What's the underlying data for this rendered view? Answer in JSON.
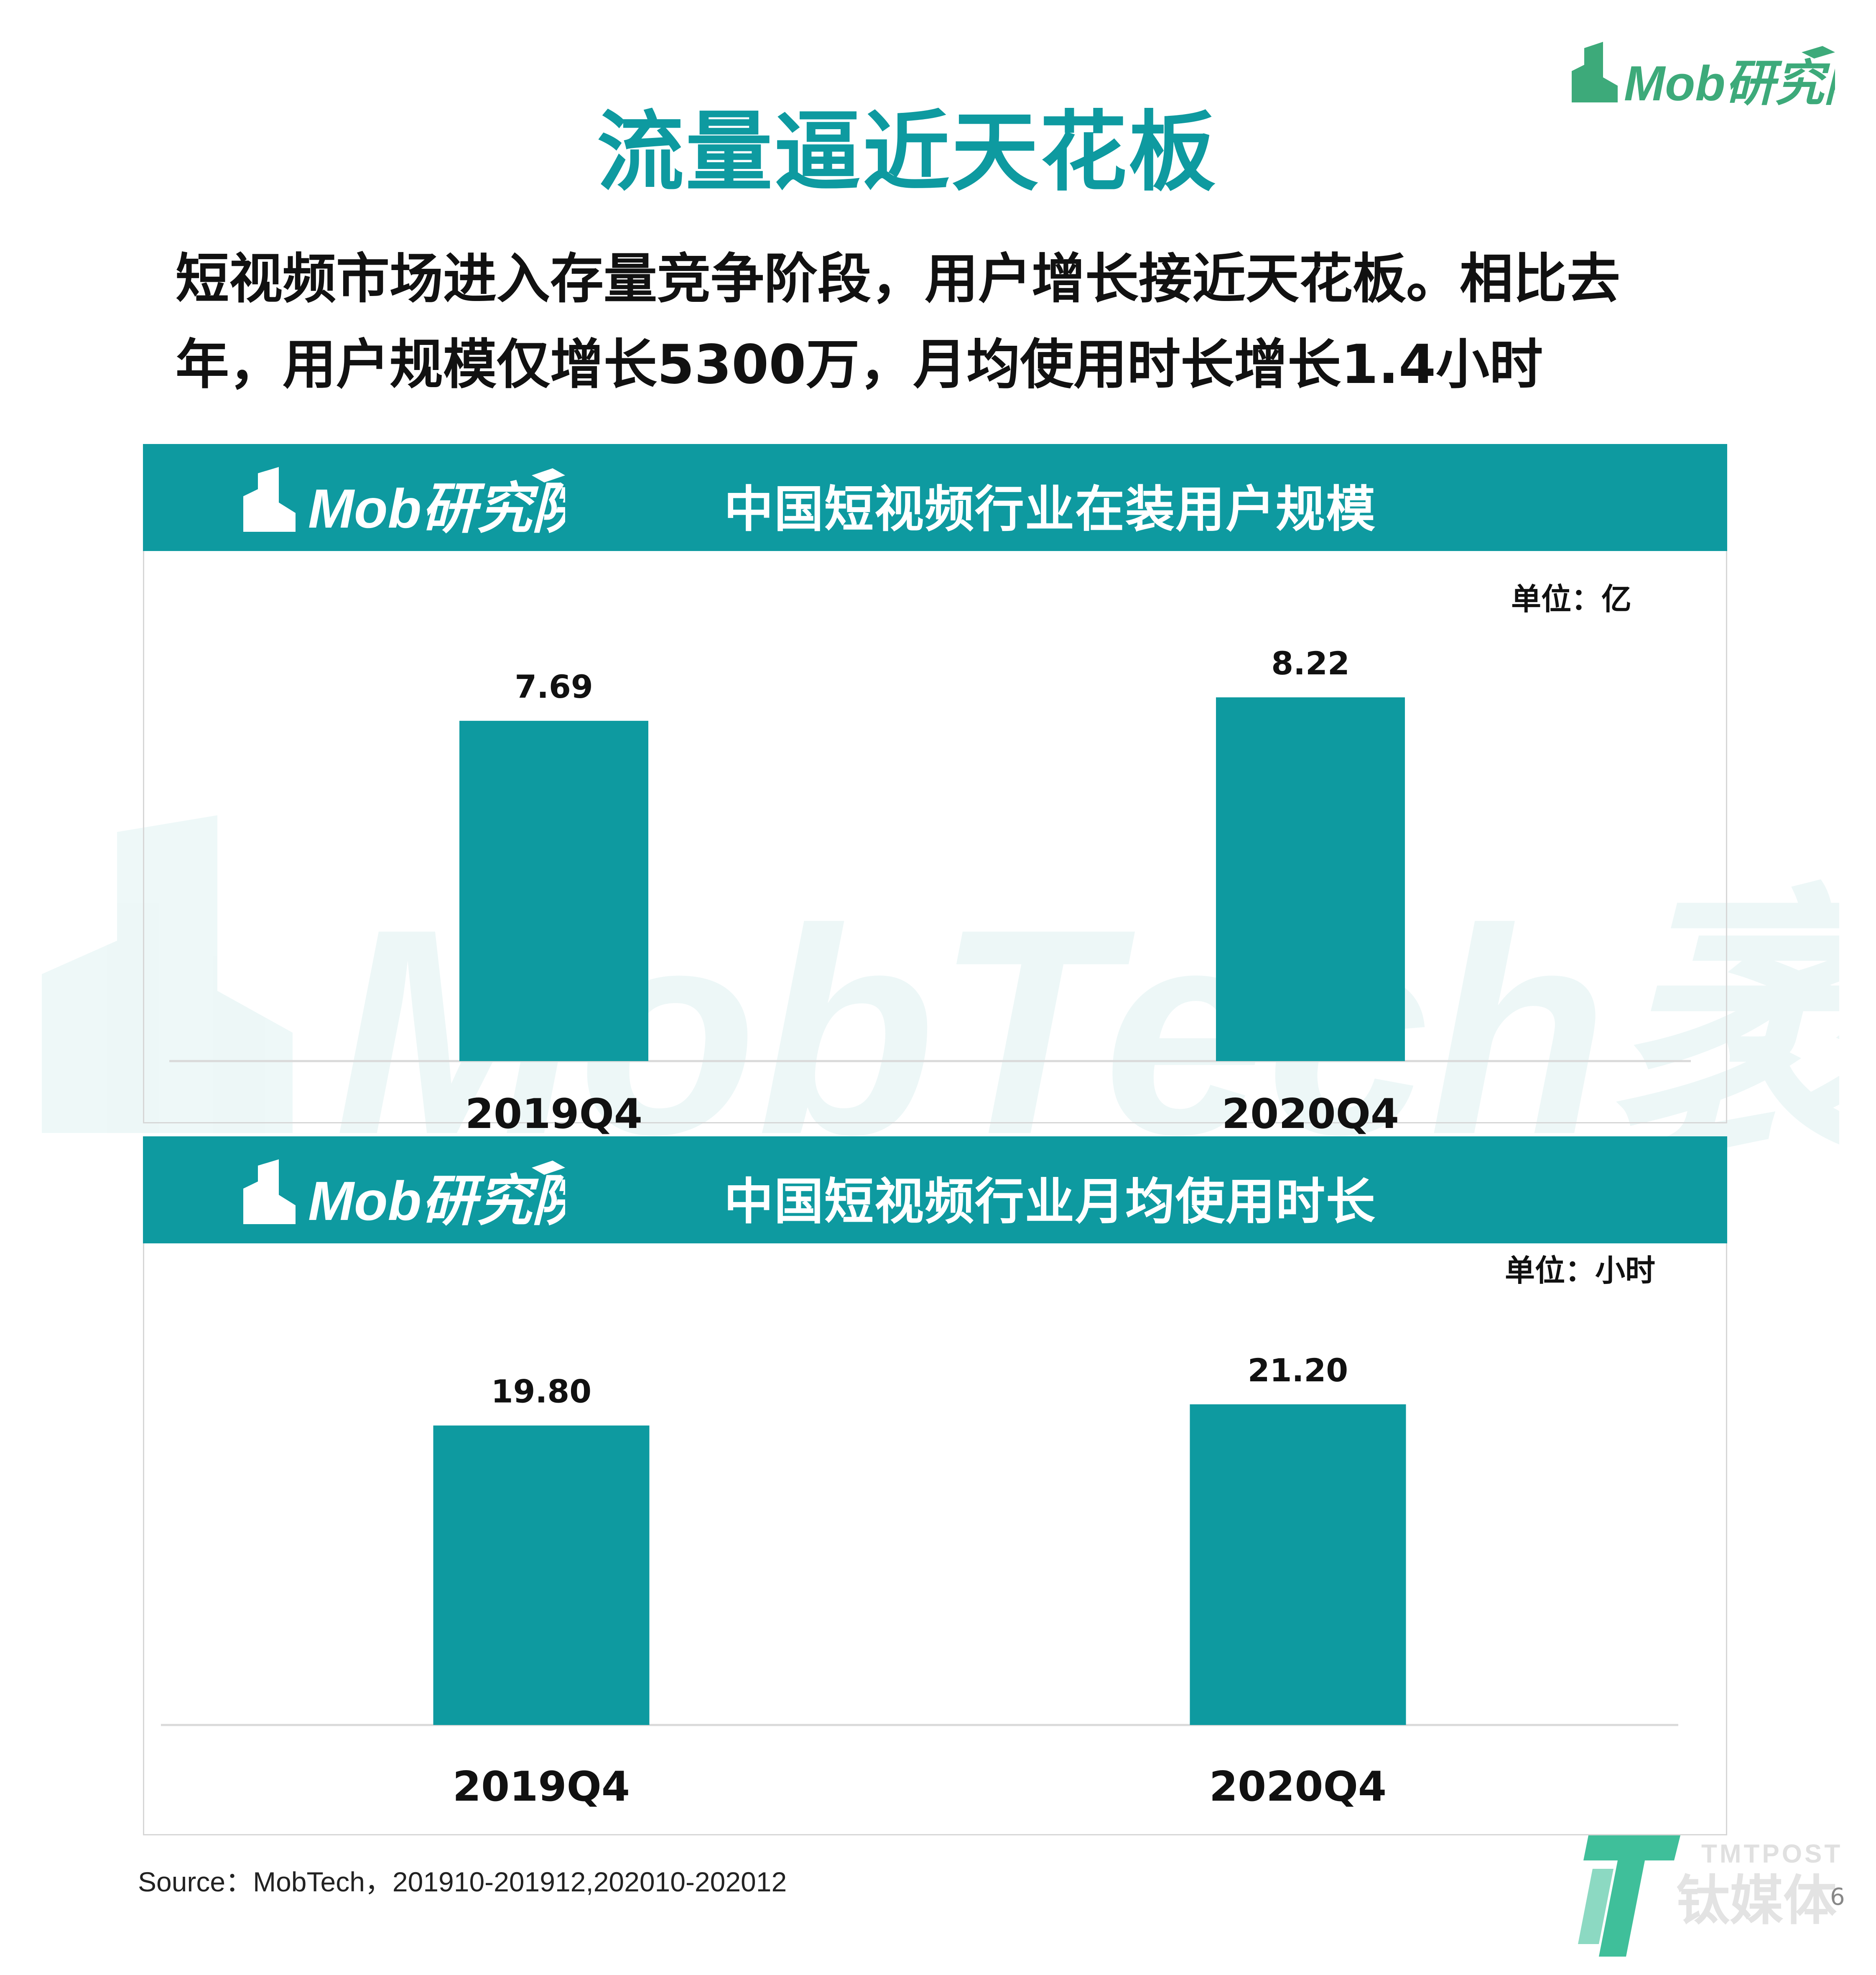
{
  "header": {
    "logo_text": "Mob研究院",
    "title": "流量逼近天花板",
    "subtitle": "短视频市场进入存量竞争阶段，用户增长接近天花板。相比去年，用户规模仅增长5300万，月均使用时长增长1.4小时"
  },
  "watermark": {
    "text": "MobTech袤博"
  },
  "colors": {
    "bar": "#0e9aa0",
    "header_band": "#0e9aa0",
    "title": "#0e9aa0",
    "logo_green": "#3daa7a"
  },
  "panels": [
    {
      "logo_text": "Mob研究院",
      "title": "中国短视频行业在装用户规模",
      "unit": "单位：亿"
    },
    {
      "logo_text": "Mob研究院",
      "title": "中国短视频行业月均使用时长",
      "unit": "单位：小时"
    }
  ],
  "chart_data": [
    {
      "type": "bar",
      "title": "中国短视频行业在装用户规模",
      "unit": "单位：亿",
      "categories": [
        "2019Q4",
        "2020Q4"
      ],
      "values": [
        7.69,
        8.22
      ],
      "value_labels": [
        "7.69",
        "8.22"
      ],
      "ylim": [
        0,
        8.22
      ],
      "grid": false,
      "legend": "none"
    },
    {
      "type": "bar",
      "title": "中国短视频行业月均使用时长",
      "unit": "单位：小时",
      "categories": [
        "2019Q4",
        "2020Q4"
      ],
      "values": [
        19.8,
        21.2
      ],
      "value_labels": [
        "19.80",
        "21.20"
      ],
      "ylim": [
        0,
        21.2
      ],
      "grid": false,
      "legend": "none"
    }
  ],
  "footer": {
    "source": "Source：MobTech，201910-201912,202010-202012",
    "tmt_brand_en": "TMTPOST",
    "tmt_brand_cn": "钛媒体",
    "page_number": "6"
  }
}
